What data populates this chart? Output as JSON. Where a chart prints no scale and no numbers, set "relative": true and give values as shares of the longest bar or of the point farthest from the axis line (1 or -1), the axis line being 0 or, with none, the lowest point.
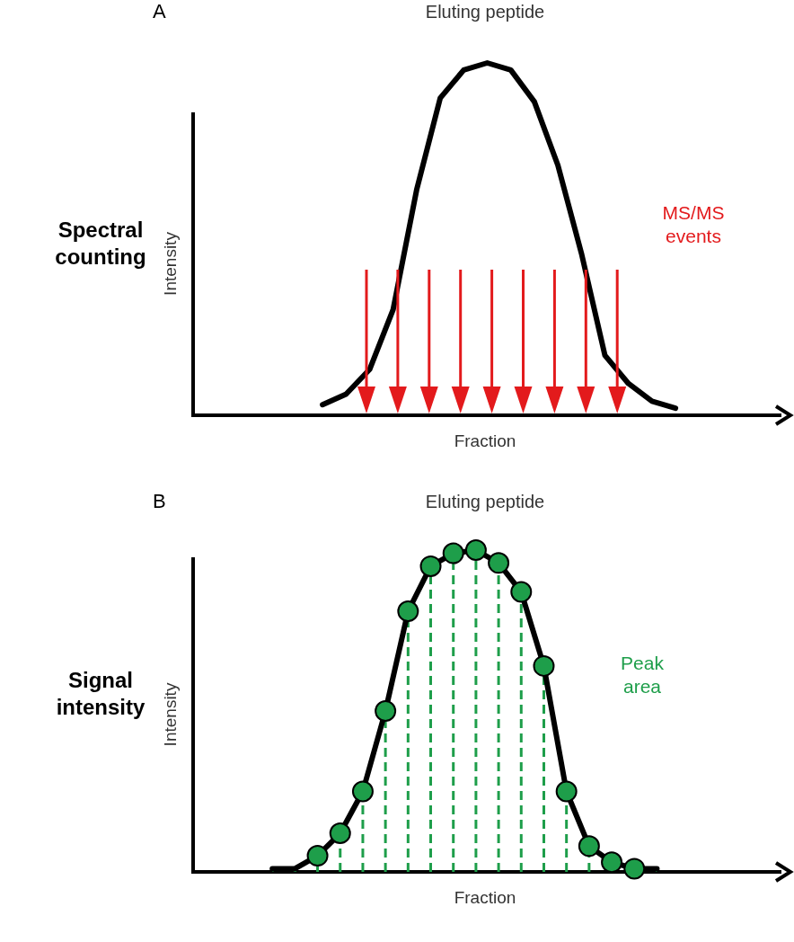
{
  "chart_data": [
    {
      "type": "line",
      "title": "Eluting peptide",
      "xlabel": "Fraction",
      "ylabel": "Intensity",
      "relative": true,
      "annotations": [
        "A",
        "Spectral counting",
        "MS/MS events"
      ],
      "categories": [
        null,
        null,
        null,
        null,
        null,
        null,
        null,
        null,
        null,
        null,
        null,
        null,
        null,
        null,
        null,
        null,
        null,
        null,
        null,
        null,
        null,
        null,
        null,
        null,
        null
      ],
      "series": [
        {
          "color": "#000000",
          "values": [
            null,
            null,
            null,
            null,
            null,
            0.03,
            0.06,
            0.13,
            0.3,
            0.64,
            0.9,
            0.98,
            1,
            0.98,
            0.89,
            0.71,
            0.46,
            0.17,
            0.09,
            0.04,
            0.02,
            null,
            null,
            null,
            null
          ]
        }
      ]
    },
    {
      "type": "line",
      "title": "Eluting peptide",
      "xlabel": "Fraction",
      "ylabel": "Intensity",
      "relative": true,
      "grid": "x",
      "annotations": [
        "B",
        "Signal intensity",
        "Peak area"
      ],
      "categories": [
        null,
        null,
        null,
        null,
        null,
        null,
        null,
        null,
        null,
        null,
        null,
        null,
        null,
        null,
        null,
        null,
        null,
        null,
        null,
        null,
        null,
        null,
        null,
        null,
        null,
        null
      ],
      "series": [
        {
          "color": "#000000",
          "marker": "circle",
          "values": [
            null,
            null,
            null,
            0.01,
            0.01,
            0.05,
            0.12,
            0.25,
            0.5,
            0.81,
            0.95,
            0.99,
            1,
            0.96,
            0.87,
            0.64,
            0.25,
            0.08,
            0.03,
            0.01,
            0.01,
            null,
            null,
            null,
            null,
            null
          ],
          "colors": [
            null,
            null,
            null,
            null,
            null,
            "#1e9e4a",
            "#1e9e4a",
            "#1e9e4a",
            "#1e9e4a",
            "#1e9e4a",
            "#1e9e4a",
            "#1e9e4a",
            "#1e9e4a",
            "#1e9e4a",
            "#1e9e4a",
            "#1e9e4a",
            "#1e9e4a",
            "#1e9e4a",
            "#1e9e4a",
            "#1e9e4a",
            null,
            null,
            null,
            null,
            null,
            null
          ]
        }
      ]
    }
  ]
}
